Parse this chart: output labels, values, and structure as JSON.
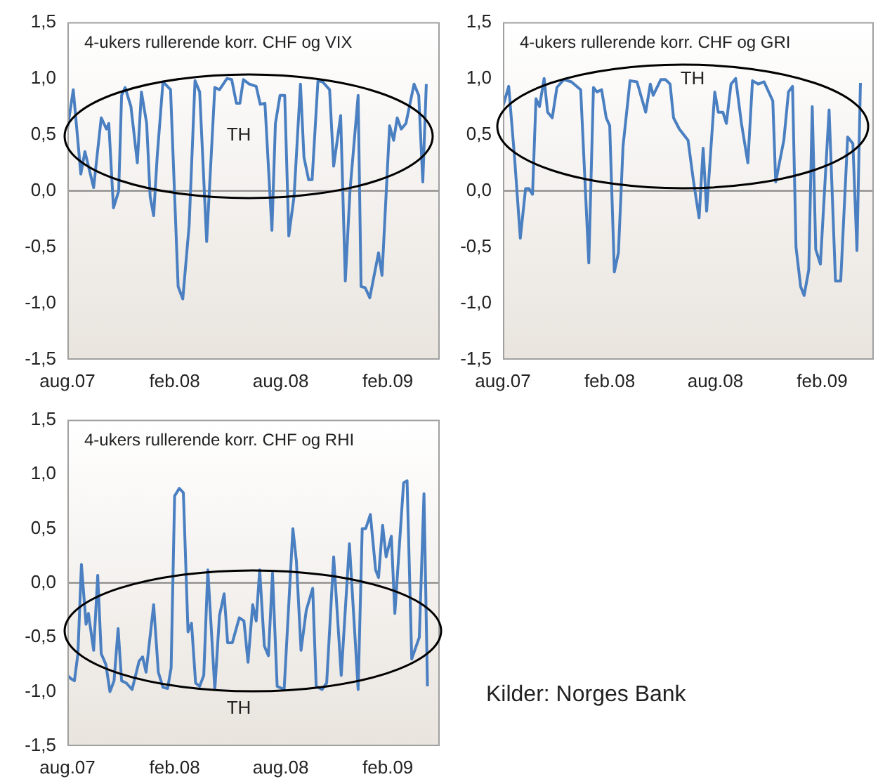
{
  "chart_data": [
    {
      "type": "line",
      "title": "4-ukers rullerende korr. CHF og VIX",
      "annotations": [
        "TH"
      ],
      "grid": false,
      "legend": false,
      "marker": "none",
      "line_style": "solid",
      "xlim": [
        "2007-08",
        "2009-05"
      ],
      "xticks": [
        {
          "value": "2007-08",
          "label": "aug.07"
        },
        {
          "value": "2008-02",
          "label": "feb.08"
        },
        {
          "value": "2008-08",
          "label": "aug.08"
        },
        {
          "value": "2009-02",
          "label": "feb.09"
        }
      ],
      "ylim": [
        -1.5,
        1.5
      ],
      "yticks": [
        {
          "value": -1.5,
          "label": "-1,5"
        },
        {
          "value": -1,
          "label": "-1,0"
        },
        {
          "value": -0.5,
          "label": "-0,5"
        },
        {
          "value": 0,
          "label": "0,0"
        },
        {
          "value": 0.5,
          "label": "0,5"
        },
        {
          "value": 1,
          "label": "1,0"
        },
        {
          "value": 1.5,
          "label": "1,5"
        }
      ],
      "ref_lines": [
        {
          "axis": "y",
          "value": 0,
          "color": "#808080"
        }
      ],
      "series": [
        {
          "color": "#4a7fc1",
          "x": [
            "2007-08-01",
            "2007-08-11",
            "2007-08-24",
            "2007-08-31",
            "2007-09-15",
            "2007-09-28",
            "2007-10-07",
            "2007-10-11",
            "2007-10-19",
            "2007-10-28",
            "2007-11-02",
            "2007-11-08",
            "2007-11-18",
            "2007-11-29",
            "2007-12-06",
            "2007-12-15",
            "2007-12-21",
            "2007-12-27",
            "2008-01-02",
            "2008-01-12",
            "2008-01-25",
            "2008-02-07",
            "2008-02-15",
            "2008-02-26",
            "2008-03-07",
            "2008-03-15",
            "2008-03-27",
            "2008-04-10",
            "2008-04-18",
            "2008-05-01",
            "2008-05-09",
            "2008-05-17",
            "2008-05-23",
            "2008-05-29",
            "2008-06-08",
            "2008-06-20",
            "2008-06-27",
            "2008-07-05",
            "2008-07-17",
            "2008-07-23",
            "2008-07-31",
            "2008-08-08",
            "2008-08-15",
            "2008-08-24",
            "2008-09-04",
            "2008-09-10",
            "2008-09-18",
            "2008-09-24",
            "2008-10-04",
            "2008-10-12",
            "2008-10-24",
            "2008-10-31",
            "2008-11-12",
            "2008-11-20",
            "2008-11-28",
            "2008-12-12",
            "2008-12-17",
            "2008-12-24",
            "2009-01-01",
            "2009-01-16",
            "2009-01-22",
            "2009-02-04",
            "2009-02-11",
            "2009-02-17",
            "2009-02-24",
            "2009-03-04",
            "2009-03-18",
            "2009-03-26",
            "2009-04-02",
            "2009-04-08"
          ],
          "values": [
            0.55,
            0.9,
            0.15,
            0.35,
            0.03,
            0.65,
            0.55,
            0.6,
            -0.15,
            0.0,
            0.85,
            0.92,
            0.75,
            0.25,
            0.88,
            0.6,
            -0.05,
            -0.22,
            0.3,
            0.97,
            0.9,
            -0.85,
            -0.96,
            -0.3,
            0.98,
            0.88,
            -0.45,
            0.92,
            0.9,
            1.0,
            0.99,
            0.78,
            0.78,
            0.99,
            0.95,
            0.93,
            0.77,
            0.78,
            -0.35,
            0.6,
            0.85,
            0.85,
            -0.4,
            -0.05,
            0.95,
            0.3,
            0.1,
            0.1,
            0.98,
            0.97,
            0.9,
            0.22,
            0.67,
            -0.8,
            0.0,
            0.85,
            -0.85,
            -0.86,
            -0.95,
            -0.55,
            -0.75,
            0.58,
            0.45,
            0.65,
            0.55,
            0.6,
            0.95,
            0.85,
            0.08,
            0.95
          ]
        }
      ]
    },
    {
      "type": "line",
      "title": "4-ukers rullerende korr. CHF og GRI",
      "annotations": [
        "TH"
      ],
      "grid": false,
      "legend": false,
      "marker": "none",
      "line_style": "solid",
      "xlim": [
        "2007-08",
        "2009-05"
      ],
      "xticks": [
        {
          "value": "2007-08",
          "label": "aug.07"
        },
        {
          "value": "2008-02",
          "label": "feb.08"
        },
        {
          "value": "2008-08",
          "label": "aug.08"
        },
        {
          "value": "2009-02",
          "label": "feb.09"
        }
      ],
      "ylim": [
        -1.5,
        1.5
      ],
      "yticks": [
        {
          "value": -1.5,
          "label": "-1,5"
        },
        {
          "value": -1,
          "label": "-1,0"
        },
        {
          "value": -0.5,
          "label": "-0,5"
        },
        {
          "value": 0,
          "label": "0,0"
        },
        {
          "value": 0.5,
          "label": "0,5"
        },
        {
          "value": 1,
          "label": "1,0"
        },
        {
          "value": 1.5,
          "label": "1,5"
        }
      ],
      "ref_lines": [
        {
          "axis": "y",
          "value": 0,
          "color": "#808080"
        }
      ],
      "series": [
        {
          "color": "#4a7fc1",
          "x": [
            "2007-08-01",
            "2007-08-11",
            "2007-08-21",
            "2007-08-31",
            "2007-09-09",
            "2007-09-15",
            "2007-09-21",
            "2007-09-27",
            "2007-10-03",
            "2007-10-11",
            "2007-10-17",
            "2007-10-25",
            "2007-11-02",
            "2007-11-14",
            "2007-11-27",
            "2007-12-13",
            "2007-12-27",
            "2008-01-04",
            "2008-01-10",
            "2008-01-18",
            "2008-01-26",
            "2008-02-01",
            "2008-02-09",
            "2008-02-16",
            "2008-02-24",
            "2008-03-07",
            "2008-03-19",
            "2008-04-03",
            "2008-04-11",
            "2008-04-16",
            "2008-04-29",
            "2008-05-07",
            "2008-05-15",
            "2008-05-21",
            "2008-05-31",
            "2008-06-15",
            "2008-06-24",
            "2008-07-04",
            "2008-07-11",
            "2008-07-17",
            "2008-07-31",
            "2008-08-06",
            "2008-08-14",
            "2008-08-20",
            "2008-08-28",
            "2008-09-05",
            "2008-09-15",
            "2008-09-26",
            "2008-10-04",
            "2008-10-14",
            "2008-10-24",
            "2008-11-08",
            "2008-11-13",
            "2008-11-27",
            "2008-12-05",
            "2008-12-12",
            "2008-12-18",
            "2008-12-26",
            "2009-01-01",
            "2009-01-09",
            "2009-01-15",
            "2009-01-21",
            "2009-01-29",
            "2009-02-13",
            "2009-02-24",
            "2009-03-05",
            "2009-03-17",
            "2009-03-26",
            "2009-04-02",
            "2009-04-08"
          ],
          "values": [
            0.75,
            0.93,
            0.3,
            -0.42,
            0.02,
            0.02,
            -0.03,
            0.82,
            0.75,
            1.0,
            0.7,
            0.65,
            0.92,
            0.99,
            0.97,
            0.9,
            -0.64,
            0.92,
            0.88,
            0.9,
            0.65,
            0.58,
            -0.72,
            -0.55,
            0.4,
            0.98,
            0.97,
            0.7,
            0.95,
            0.85,
            0.99,
            0.99,
            0.95,
            0.65,
            0.55,
            0.45,
            0.1,
            -0.24,
            0.38,
            -0.18,
            0.88,
            0.7,
            0.7,
            0.6,
            0.95,
            1.0,
            0.6,
            0.25,
            0.98,
            0.95,
            0.97,
            0.8,
            0.08,
            0.45,
            0.88,
            0.93,
            -0.5,
            -0.85,
            -0.93,
            -0.7,
            0.75,
            -0.52,
            -0.65,
            0.72,
            -0.8,
            -0.8,
            0.48,
            0.42,
            -0.53,
            0.96
          ]
        }
      ]
    },
    {
      "type": "line",
      "title": "4-ukers rullerende korr. CHF og RHI",
      "annotations": [
        "TH"
      ],
      "grid": false,
      "legend": false,
      "marker": "none",
      "line_style": "solid",
      "xlim": [
        "2007-08",
        "2009-05"
      ],
      "xticks": [
        {
          "value": "2007-08",
          "label": "aug.07"
        },
        {
          "value": "2008-02",
          "label": "feb.08"
        },
        {
          "value": "2008-08",
          "label": "aug.08"
        },
        {
          "value": "2009-02",
          "label": "feb.09"
        }
      ],
      "ylim": [
        -1.5,
        1.5
      ],
      "yticks": [
        {
          "value": -1.5,
          "label": "-1,5"
        },
        {
          "value": -1,
          "label": "-1,0"
        },
        {
          "value": -0.5,
          "label": "-0,5"
        },
        {
          "value": 0,
          "label": "0,0"
        },
        {
          "value": 0.5,
          "label": "0,5"
        },
        {
          "value": 1,
          "label": "1,0"
        },
        {
          "value": 1.5,
          "label": "1,5"
        }
      ],
      "ref_lines": [
        {
          "axis": "y",
          "value": 0,
          "color": "#808080"
        }
      ],
      "series": [
        {
          "color": "#4a7fc1",
          "x": [
            "2007-08-01",
            "2007-08-07",
            "2007-08-13",
            "2007-08-19",
            "2007-08-25",
            "2007-09-02",
            "2007-09-06",
            "2007-09-15",
            "2007-09-22",
            "2007-09-28",
            "2007-10-06",
            "2007-10-13",
            "2007-10-20",
            "2007-10-27",
            "2007-11-02",
            "2007-11-10",
            "2007-11-20",
            "2007-12-02",
            "2007-12-08",
            "2007-12-14",
            "2007-12-27",
            "2008-01-04",
            "2008-01-12",
            "2008-01-20",
            "2008-01-26",
            "2008-02-01",
            "2008-02-09",
            "2008-02-16",
            "2008-02-24",
            "2008-03-01",
            "2008-03-08",
            "2008-03-15",
            "2008-03-22",
            "2008-03-29",
            "2008-04-10",
            "2008-04-18",
            "2008-04-26",
            "2008-05-02",
            "2008-05-10",
            "2008-05-22",
            "2008-05-30",
            "2008-06-06",
            "2008-06-14",
            "2008-06-20",
            "2008-06-26",
            "2008-07-04",
            "2008-07-11",
            "2008-07-18",
            "2008-07-26",
            "2008-08-07",
            "2008-08-22",
            "2008-08-28",
            "2008-09-05",
            "2008-09-14",
            "2008-09-25",
            "2008-10-01",
            "2008-10-11",
            "2008-10-19",
            "2008-10-31",
            "2008-11-13",
            "2008-11-27",
            "2008-12-12",
            "2008-12-19",
            "2008-12-25",
            "2009-01-02",
            "2009-01-11",
            "2009-01-16",
            "2009-01-23",
            "2009-01-29",
            "2009-02-07",
            "2009-02-13",
            "2009-02-28",
            "2009-03-06",
            "2009-03-14",
            "2009-03-27",
            "2009-04-04",
            "2009-04-10"
          ],
          "values": [
            -0.85,
            -0.88,
            -0.9,
            -0.65,
            0.17,
            -0.38,
            -0.28,
            -0.62,
            0.07,
            -0.65,
            -0.75,
            -1.0,
            -0.9,
            -0.42,
            -0.9,
            -0.92,
            -0.98,
            -0.72,
            -0.68,
            -0.82,
            -0.2,
            -0.82,
            -0.96,
            -0.97,
            -0.78,
            0.8,
            0.87,
            0.83,
            -0.45,
            -0.37,
            -0.92,
            -0.95,
            -0.85,
            0.12,
            -0.98,
            -0.3,
            -0.1,
            -0.55,
            -0.55,
            -0.32,
            -0.35,
            -0.73,
            -0.2,
            -0.35,
            0.12,
            -0.58,
            -0.67,
            0.09,
            -0.95,
            -0.98,
            0.5,
            0.2,
            -0.62,
            -0.25,
            -0.05,
            -0.95,
            -0.98,
            -0.92,
            0.24,
            -0.85,
            0.36,
            -0.98,
            0.5,
            0.5,
            0.63,
            0.12,
            0.05,
            0.53,
            0.24,
            0.43,
            -0.28,
            0.92,
            0.94,
            -0.7,
            -0.5,
            0.82,
            -0.95
          ]
        }
      ]
    },
    {
      "type": "other",
      "annotations": [
        "Kilder: Norges Bank"
      ]
    }
  ]
}
